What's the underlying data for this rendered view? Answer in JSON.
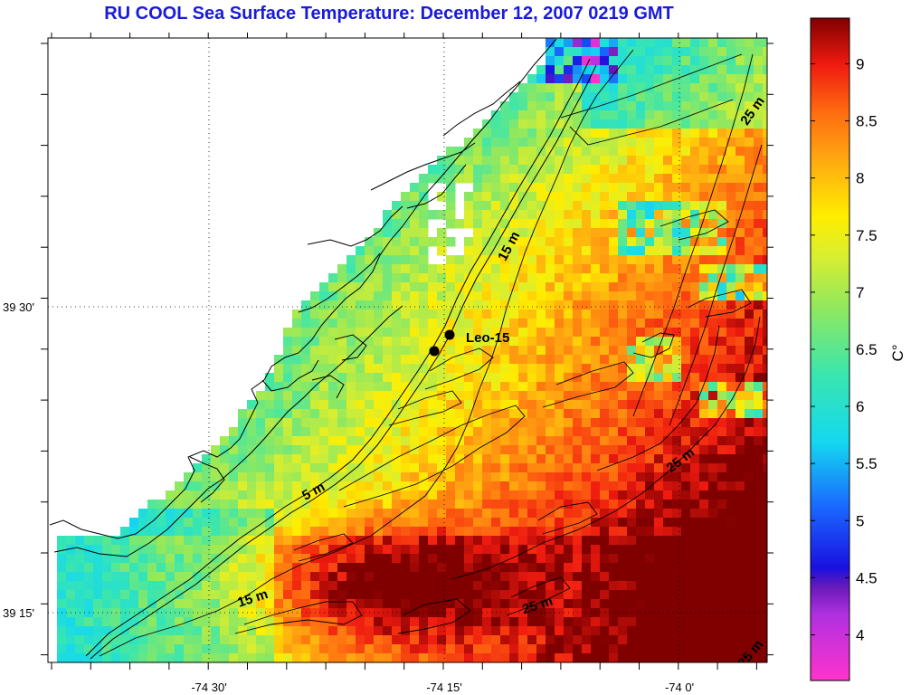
{
  "title": "RU COOL  Sea Surface Temperature:  December 12, 2007 0219 GMT",
  "colors": {
    "title": "#1a1adb",
    "coast": "#000000",
    "contour": "#000000"
  },
  "map": {
    "lon_ticks": [
      "-74 30'",
      "-74 15'",
      "-74 0'"
    ],
    "lat_ticks": [
      "39 30'",
      "39 15'"
    ],
    "gridlines": true,
    "station": {
      "label": "Leo-15"
    },
    "contour_labels": [
      "5 m",
      "15 m",
      "15 m",
      "25 m",
      "25 m",
      "25 m",
      "25 m"
    ]
  },
  "colorbar": {
    "unit": "C°",
    "range": [
      3.6,
      9.4
    ],
    "ticks": [
      "4",
      "4.5",
      "5",
      "5.5",
      "6",
      "6.5",
      "7",
      "7.5",
      "8",
      "8.5",
      "9"
    ],
    "tick_values": [
      4,
      4.5,
      5,
      5.5,
      6,
      6.5,
      7,
      7.5,
      8,
      8.5,
      9
    ]
  }
}
